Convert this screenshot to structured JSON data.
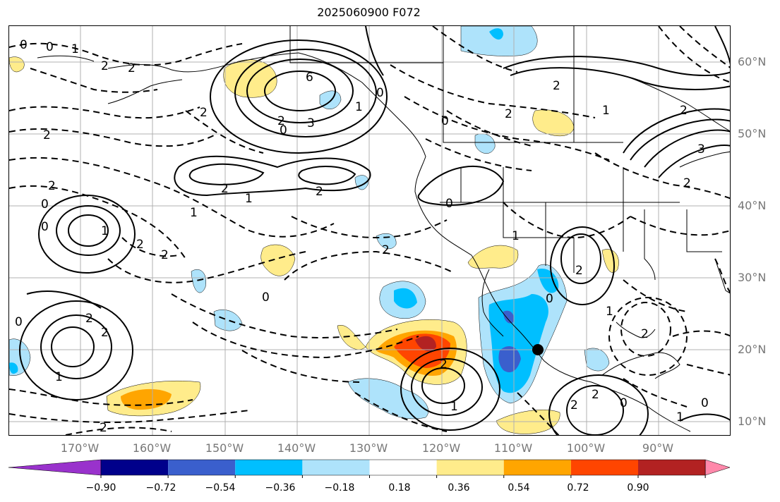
{
  "title": "2025060900 F072",
  "lat_labels": [
    "60°N",
    "50°N",
    "40°N",
    "30°N",
    "20°N",
    "10°N"
  ],
  "lon_labels": [
    "170°W",
    "160°W",
    "150°W",
    "140°W",
    "130°W",
    "120°W",
    "110°W",
    "100°W",
    "90°W"
  ],
  "colorbar": {
    "ticks": [
      "−0.90",
      "−0.72",
      "−0.54",
      "−0.36",
      "−0.18",
      "0.18",
      "0.36",
      "0.54",
      "0.72",
      "0.90"
    ],
    "colors": [
      "#9932cc",
      "#00008b",
      "#3a5fcd",
      "#00bfff",
      "#aee3fb",
      "#ffffff",
      "#ffec8b",
      "#ffa500",
      "#ff4500",
      "#b22222",
      "#ff88aa"
    ]
  },
  "contour_labels": [
    "0",
    "1",
    "2",
    "2",
    "0",
    "6",
    "3",
    "0",
    "2",
    "1",
    "2",
    "2",
    "2",
    "0",
    "0",
    "1",
    "2",
    "2",
    "0",
    "2",
    "1",
    "2",
    "1",
    "2",
    "0",
    "0",
    "2",
    "0",
    "0",
    "1",
    "2",
    "1",
    "2",
    "2",
    "2",
    "0",
    "1",
    "2",
    "2",
    "1",
    "2",
    "2",
    "2",
    "3",
    "2",
    "1",
    "0",
    "1",
    "2",
    "0"
  ],
  "marker": {
    "name": "location-dot"
  }
}
